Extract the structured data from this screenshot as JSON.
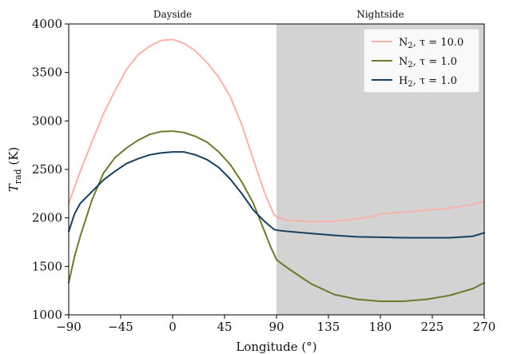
{
  "chart_data": {
    "type": "line",
    "xlabel": "Longitude (°)",
    "ylabel": "T_rad (K)",
    "ylabel_main": "T",
    "ylabel_sub": "rad",
    "ylabel_unit": " (K)",
    "xlim": [
      -90,
      270
    ],
    "ylim": [
      1000,
      4000
    ],
    "xticks": [
      -90,
      -45,
      0,
      45,
      90,
      135,
      180,
      225,
      270
    ],
    "xtick_labels": [
      "−90",
      "−45",
      "0",
      "45",
      "90",
      "135",
      "180",
      "225",
      "270"
    ],
    "yticks": [
      1000,
      1500,
      2000,
      2500,
      3000,
      3500,
      4000
    ],
    "ytick_labels": [
      "1000",
      "1500",
      "2000",
      "2500",
      "3000",
      "3500",
      "4000"
    ],
    "grid": false,
    "legend_position": "top-right",
    "regions": [
      {
        "label": "Dayside",
        "x_start": -90,
        "x_end": 90,
        "shaded": false
      },
      {
        "label": "Nightside",
        "x_start": 90,
        "x_end": 270,
        "shaded": true,
        "color": "#d3d3d3"
      }
    ],
    "series": [
      {
        "name": "N2, τ = 10.0",
        "legend_main": "N",
        "legend_sub": "2",
        "legend_rest": ", τ = 10.0",
        "color": "#f7b2ab",
        "x": [
          -90,
          -80,
          -70,
          -60,
          -50,
          -40,
          -30,
          -20,
          -10,
          0,
          10,
          20,
          30,
          40,
          50,
          60,
          70,
          80,
          88,
          92,
          100,
          120,
          140,
          160,
          175,
          180,
          200,
          220,
          240,
          260,
          270
        ],
        "y": [
          2150,
          2480,
          2780,
          3070,
          3310,
          3530,
          3680,
          3770,
          3830,
          3840,
          3800,
          3720,
          3600,
          3450,
          3250,
          2960,
          2600,
          2250,
          2030,
          2000,
          1975,
          1960,
          1965,
          1990,
          2020,
          2040,
          2060,
          2080,
          2100,
          2140,
          2170
        ]
      },
      {
        "name": "N2, τ = 1.0",
        "legend_main": "N",
        "legend_sub": "2",
        "legend_rest": ", τ = 1.0",
        "color": "#6b7b2e",
        "x": [
          -90,
          -85,
          -80,
          -70,
          -60,
          -50,
          -40,
          -30,
          -20,
          -10,
          0,
          10,
          20,
          30,
          40,
          50,
          60,
          70,
          75,
          80,
          85,
          90,
          92,
          100,
          120,
          140,
          160,
          180,
          200,
          220,
          240,
          260,
          270
        ],
        "y": [
          1330,
          1600,
          1810,
          2180,
          2460,
          2620,
          2720,
          2800,
          2860,
          2890,
          2895,
          2880,
          2840,
          2780,
          2680,
          2550,
          2370,
          2150,
          2000,
          1850,
          1700,
          1570,
          1550,
          1480,
          1320,
          1210,
          1160,
          1140,
          1140,
          1160,
          1200,
          1270,
          1330
        ]
      },
      {
        "name": "H2, τ = 1.0",
        "legend_main": "H",
        "legend_sub": "2",
        "legend_rest": ", τ = 1.0",
        "color": "#173f5f",
        "x": [
          -90,
          -85,
          -80,
          -70,
          -60,
          -50,
          -40,
          -30,
          -20,
          -10,
          0,
          10,
          20,
          30,
          40,
          50,
          60,
          70,
          80,
          88,
          92,
          100,
          120,
          140,
          160,
          180,
          200,
          220,
          240,
          260,
          270
        ],
        "y": [
          1860,
          2040,
          2150,
          2270,
          2390,
          2480,
          2560,
          2610,
          2650,
          2670,
          2680,
          2680,
          2650,
          2600,
          2520,
          2400,
          2250,
          2080,
          1960,
          1880,
          1870,
          1860,
          1840,
          1820,
          1805,
          1800,
          1795,
          1795,
          1795,
          1810,
          1845
        ]
      }
    ]
  }
}
